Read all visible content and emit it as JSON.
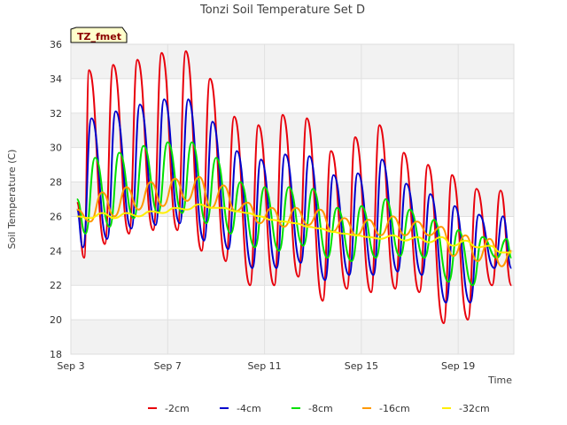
{
  "chart_data": {
    "type": "line",
    "title": "Tonzi Soil Temperature Set D",
    "xlabel": "Time",
    "ylabel": "Soil Temperature (C)",
    "badge": "TZ_fmet",
    "ylim": [
      18,
      36
    ],
    "yticks": [
      18,
      20,
      22,
      24,
      26,
      28,
      30,
      32,
      34,
      36
    ],
    "xlim": [
      "Sep 3",
      "Sep 21.3"
    ],
    "xticks": [
      "Sep 3",
      "Sep 7",
      "Sep 11",
      "Sep 15",
      "Sep 19"
    ],
    "grid": true,
    "legend_position": "bottom",
    "series": [
      {
        "name": "-2cm",
        "color": "#e8000b",
        "x": [
          3.25,
          3.55,
          3.75,
          4.4,
          4.75,
          5.4,
          5.75,
          6.4,
          6.75,
          7.4,
          7.75,
          8.4,
          8.75,
          9.4,
          9.75,
          10.4,
          10.75,
          11.4,
          11.75,
          12.4,
          12.75,
          13.4,
          13.75,
          14.4,
          14.75,
          15.4,
          15.75,
          16.4,
          16.75,
          17.4,
          17.75,
          18.4,
          18.75,
          19.4,
          19.75,
          20.4,
          20.75,
          21.2
        ],
        "y": [
          26.8,
          23.6,
          34.5,
          24.4,
          34.8,
          25.0,
          35.1,
          25.2,
          35.5,
          25.2,
          35.6,
          24.0,
          34.0,
          23.4,
          31.8,
          22.0,
          31.3,
          22.0,
          31.9,
          22.5,
          31.7,
          21.1,
          29.8,
          21.8,
          30.6,
          21.6,
          31.3,
          21.8,
          29.7,
          21.6,
          29.0,
          19.8,
          28.4,
          20.0,
          27.6,
          22.0,
          27.5,
          22.0
        ]
      },
      {
        "name": "-4cm",
        "color": "#0000cc",
        "x": [
          3.25,
          3.5,
          3.85,
          4.5,
          4.85,
          5.5,
          5.85,
          6.5,
          6.85,
          7.5,
          7.85,
          8.5,
          8.85,
          9.5,
          9.85,
          10.5,
          10.85,
          11.5,
          11.85,
          12.5,
          12.85,
          13.5,
          13.85,
          14.5,
          14.85,
          15.5,
          15.85,
          16.5,
          16.85,
          17.5,
          17.85,
          18.5,
          18.85,
          19.5,
          19.85,
          20.5,
          20.85,
          21.2
        ],
        "y": [
          26.4,
          24.2,
          31.7,
          24.7,
          32.1,
          25.3,
          32.5,
          25.5,
          32.8,
          25.6,
          32.8,
          24.6,
          31.5,
          24.1,
          29.8,
          23.0,
          29.3,
          23.0,
          29.6,
          23.3,
          29.5,
          22.3,
          28.4,
          22.6,
          28.5,
          22.6,
          29.3,
          22.8,
          27.9,
          22.6,
          27.3,
          21.0,
          26.6,
          21.0,
          26.1,
          23.0,
          26.0,
          23.0
        ]
      },
      {
        "name": "-8cm",
        "color": "#00e000",
        "x": [
          3.25,
          3.6,
          4.0,
          4.6,
          5.0,
          5.6,
          6.0,
          6.6,
          7.0,
          7.6,
          8.0,
          8.6,
          9.0,
          9.6,
          10.0,
          10.6,
          11.0,
          11.6,
          12.0,
          12.6,
          13.0,
          13.6,
          14.0,
          14.6,
          15.0,
          15.6,
          16.0,
          16.6,
          17.0,
          17.6,
          18.0,
          18.6,
          19.0,
          19.6,
          20.0,
          20.6,
          21.0,
          21.2
        ],
        "y": [
          27.0,
          25.0,
          29.4,
          25.4,
          29.7,
          25.9,
          30.1,
          26.2,
          30.3,
          26.2,
          30.3,
          25.6,
          29.4,
          25.0,
          28.0,
          24.2,
          27.7,
          24.0,
          27.7,
          24.3,
          27.6,
          23.6,
          26.5,
          23.4,
          26.6,
          23.6,
          27.0,
          23.7,
          26.4,
          23.6,
          25.8,
          22.2,
          25.2,
          22.0,
          24.8,
          23.6,
          24.7,
          23.6
        ]
      },
      {
        "name": "-16cm",
        "color": "#ff9900",
        "x": [
          3.25,
          3.8,
          4.3,
          4.8,
          5.3,
          5.8,
          6.3,
          6.8,
          7.3,
          7.8,
          8.3,
          8.8,
          9.3,
          9.8,
          10.3,
          10.8,
          11.3,
          11.8,
          12.3,
          12.8,
          13.3,
          13.8,
          14.3,
          14.8,
          15.3,
          15.8,
          16.3,
          16.8,
          17.3,
          17.8,
          18.3,
          18.8,
          19.3,
          19.8,
          20.3,
          20.8,
          21.2
        ],
        "y": [
          26.4,
          25.7,
          27.4,
          26.0,
          27.7,
          26.4,
          28.0,
          26.6,
          28.2,
          26.9,
          28.3,
          26.5,
          27.8,
          26.3,
          26.8,
          25.6,
          26.5,
          25.4,
          26.5,
          25.5,
          26.4,
          25.1,
          25.9,
          24.9,
          25.8,
          24.9,
          26.0,
          24.9,
          25.7,
          24.9,
          25.4,
          23.7,
          24.9,
          23.4,
          24.7,
          23.1,
          24.0
        ]
      },
      {
        "name": "-32cm",
        "color": "#ffee00",
        "x": [
          3.25,
          3.8,
          4.3,
          4.8,
          5.3,
          5.8,
          6.3,
          6.8,
          7.3,
          7.8,
          8.3,
          8.8,
          9.3,
          9.8,
          10.3,
          10.8,
          11.3,
          11.8,
          12.3,
          12.8,
          13.3,
          13.8,
          14.3,
          14.8,
          15.3,
          15.8,
          16.3,
          16.8,
          17.3,
          17.8,
          18.3,
          18.8,
          19.3,
          19.8,
          20.3,
          20.8,
          21.2
        ],
        "y": [
          26.0,
          25.9,
          26.2,
          25.9,
          26.2,
          26.0,
          26.3,
          26.2,
          26.5,
          26.4,
          26.7,
          26.5,
          26.5,
          26.3,
          26.2,
          26.0,
          25.8,
          25.7,
          25.6,
          25.4,
          25.3,
          25.1,
          25.0,
          24.9,
          24.8,
          24.7,
          24.9,
          24.6,
          24.8,
          24.5,
          24.8,
          24.3,
          24.6,
          24.2,
          24.3,
          23.9,
          23.9
        ]
      }
    ]
  }
}
